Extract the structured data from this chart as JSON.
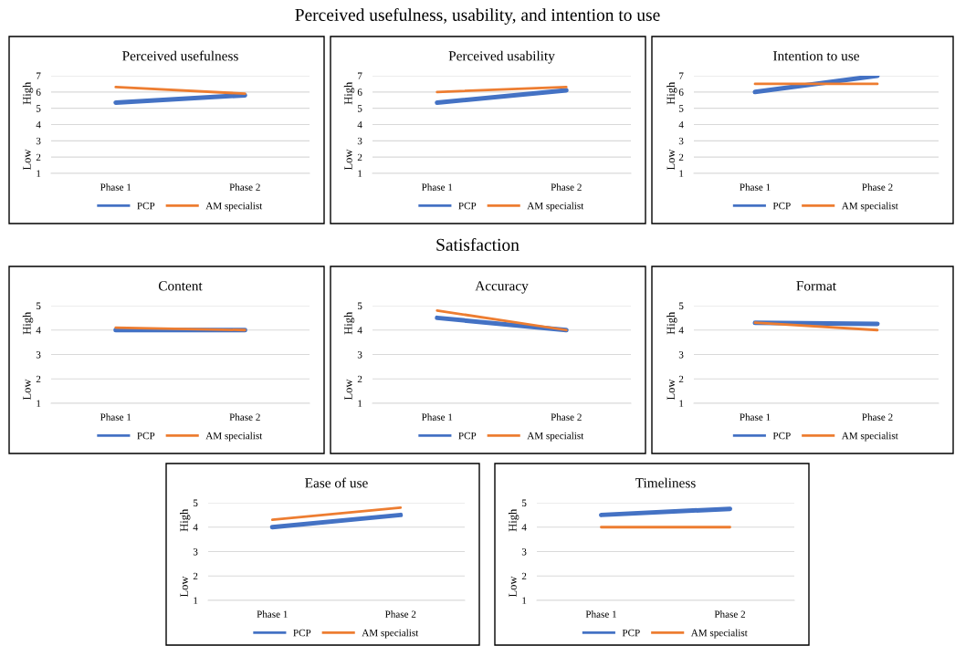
{
  "chart_data": [
    {
      "type": "line",
      "title": "Perceived usefulness",
      "annotations": [
        "High",
        "Low",
        "Perceived usefulness, usability, and intention to use"
      ],
      "categories": [
        "Phase 1",
        "Phase 2"
      ],
      "ylim": [
        1,
        7
      ],
      "yticks": [
        1,
        2,
        3,
        4,
        5,
        6,
        7
      ],
      "grid": "y",
      "legend": "bottom",
      "marker": "none",
      "series": [
        {
          "name": "PCP",
          "color": "#4472c4",
          "values": [
            5.35,
            5.8
          ]
        },
        {
          "name": "AM specialist",
          "color": "#ed7d31",
          "values": [
            6.3,
            5.9
          ]
        }
      ]
    },
    {
      "type": "line",
      "title": "Perceived usability",
      "annotations": [
        "High",
        "Low"
      ],
      "categories": [
        "Phase 1",
        "Phase 2"
      ],
      "ylim": [
        1,
        7
      ],
      "yticks": [
        1,
        2,
        3,
        4,
        5,
        6,
        7
      ],
      "grid": "y",
      "legend": "bottom",
      "marker": "none",
      "series": [
        {
          "name": "PCP",
          "color": "#4472c4",
          "values": [
            5.35,
            6.1
          ]
        },
        {
          "name": "AM specialist",
          "color": "#ed7d31",
          "values": [
            6.0,
            6.3
          ]
        }
      ]
    },
    {
      "type": "line",
      "title": "Intention to use",
      "annotations": [
        "High",
        "Low"
      ],
      "categories": [
        "Phase 1",
        "Phase 2"
      ],
      "ylim": [
        1,
        7
      ],
      "yticks": [
        1,
        2,
        3,
        4,
        5,
        6,
        7
      ],
      "grid": "y",
      "legend": "bottom",
      "marker": "none",
      "series": [
        {
          "name": "PCP",
          "color": "#4472c4",
          "values": [
            6.0,
            7.0
          ]
        },
        {
          "name": "AM specialist",
          "color": "#ed7d31",
          "values": [
            6.5,
            6.5
          ]
        }
      ]
    },
    {
      "type": "line",
      "title": "Content",
      "annotations": [
        "High",
        "Low",
        "Satisfaction"
      ],
      "categories": [
        "Phase 1",
        "Phase 2"
      ],
      "ylim": [
        1,
        5
      ],
      "yticks": [
        1,
        2,
        3,
        4,
        5
      ],
      "grid": "y",
      "legend": "bottom",
      "marker": "none",
      "series": [
        {
          "name": "PCP",
          "color": "#4472c4",
          "values": [
            4.0,
            4.0
          ]
        },
        {
          "name": "AM specialist",
          "color": "#ed7d31",
          "values": [
            4.1,
            4.0
          ]
        }
      ]
    },
    {
      "type": "line",
      "title": "Accuracy",
      "annotations": [
        "High",
        "Low"
      ],
      "categories": [
        "Phase 1",
        "Phase 2"
      ],
      "ylim": [
        1,
        5
      ],
      "yticks": [
        1,
        2,
        3,
        4,
        5
      ],
      "grid": "y",
      "legend": "bottom",
      "marker": "none",
      "series": [
        {
          "name": "PCP",
          "color": "#4472c4",
          "values": [
            4.5,
            4.0
          ]
        },
        {
          "name": "AM specialist",
          "color": "#ed7d31",
          "values": [
            4.8,
            4.0
          ]
        }
      ]
    },
    {
      "type": "line",
      "title": "Format",
      "annotations": [
        "High",
        "Low"
      ],
      "categories": [
        "Phase 1",
        "Phase 2"
      ],
      "ylim": [
        1,
        5
      ],
      "yticks": [
        1,
        2,
        3,
        4,
        5
      ],
      "grid": "y",
      "legend": "bottom",
      "marker": "none",
      "series": [
        {
          "name": "PCP",
          "color": "#4472c4",
          "values": [
            4.3,
            4.25
          ]
        },
        {
          "name": "AM specialist",
          "color": "#ed7d31",
          "values": [
            4.3,
            4.0
          ]
        }
      ]
    },
    {
      "type": "line",
      "title": "Ease of use",
      "annotations": [
        "High",
        "Low"
      ],
      "categories": [
        "Phase 1",
        "Phase 2"
      ],
      "ylim": [
        1,
        5
      ],
      "yticks": [
        1,
        2,
        3,
        4,
        5
      ],
      "grid": "y",
      "legend": "bottom",
      "marker": "none",
      "series": [
        {
          "name": "PCP",
          "color": "#4472c4",
          "values": [
            4.0,
            4.5
          ]
        },
        {
          "name": "AM specialist",
          "color": "#ed7d31",
          "values": [
            4.3,
            4.8
          ]
        }
      ]
    },
    {
      "type": "line",
      "title": "Timeliness",
      "annotations": [
        "High",
        "Low"
      ],
      "categories": [
        "Phase 1",
        "Phase 2"
      ],
      "ylim": [
        1,
        5
      ],
      "yticks": [
        1,
        2,
        3,
        4,
        5
      ],
      "grid": "y",
      "legend": "bottom",
      "marker": "none",
      "series": [
        {
          "name": "PCP",
          "color": "#4472c4",
          "values": [
            4.5,
            4.75
          ]
        },
        {
          "name": "AM specialist",
          "color": "#ed7d31",
          "values": [
            4.0,
            4.0
          ]
        }
      ]
    }
  ]
}
